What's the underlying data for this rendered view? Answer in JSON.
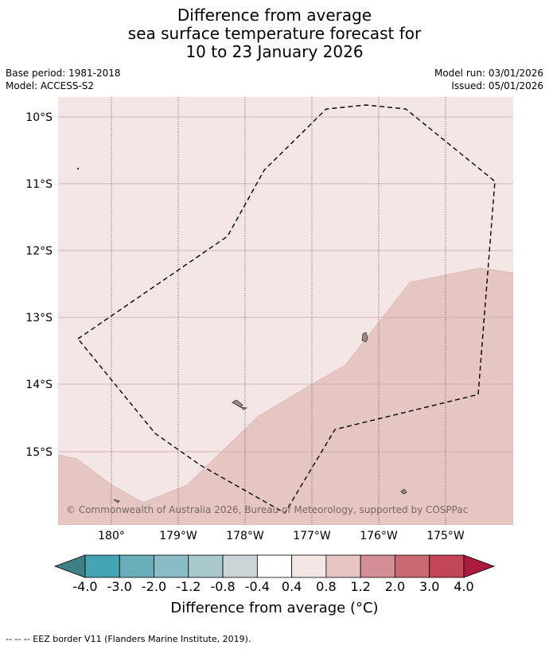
{
  "title": {
    "line1": "Difference from average",
    "line2": "sea surface temperature forecast for",
    "line3": "10 to 23 January 2026"
  },
  "meta": {
    "base_period": "Base period: 1981-2018",
    "model": "Model: ACCESS-S2",
    "model_run": "Model run: 03/01/2026",
    "issued": "Issued: 05/01/2026"
  },
  "map": {
    "lat_labels": [
      "10°S",
      "11°S",
      "12°S",
      "13°S",
      "14°S",
      "15°S"
    ],
    "lon_labels": [
      "180°",
      "179°W",
      "178°W",
      "177°W",
      "176°W",
      "175°W"
    ],
    "copyright": "© Commonwealth of Australia 2026, Bureau of Meteorology, supported by COSPPac",
    "colors": {
      "anomaly_0_4_to_0_8": "#f4e6e5",
      "anomaly_0_8_to_1_2": "#e6c6c2",
      "land": "#a08785"
    }
  },
  "colorbar": {
    "labels": [
      "-4.0",
      "-3.0",
      "-2.0",
      "-1.2",
      "-0.8",
      "-0.4",
      "0.4",
      "0.8",
      "1.2",
      "2.0",
      "3.0",
      "4.0"
    ],
    "colors": [
      "#45a5b5",
      "#6aaeb9",
      "#89bcc6",
      "#a9c8cd",
      "#cbd5d7",
      "#ffffff",
      "#f4e6e5",
      "#e6c6c2",
      "#d48e96",
      "#ca6972",
      "#c24658"
    ],
    "under_color": "#3f7f86",
    "over_color": "#ab1b3d",
    "title": "Difference from average (°C)"
  },
  "footer": "-- -- -- EEZ border V11 (Flanders Marine Institute, 2019)."
}
